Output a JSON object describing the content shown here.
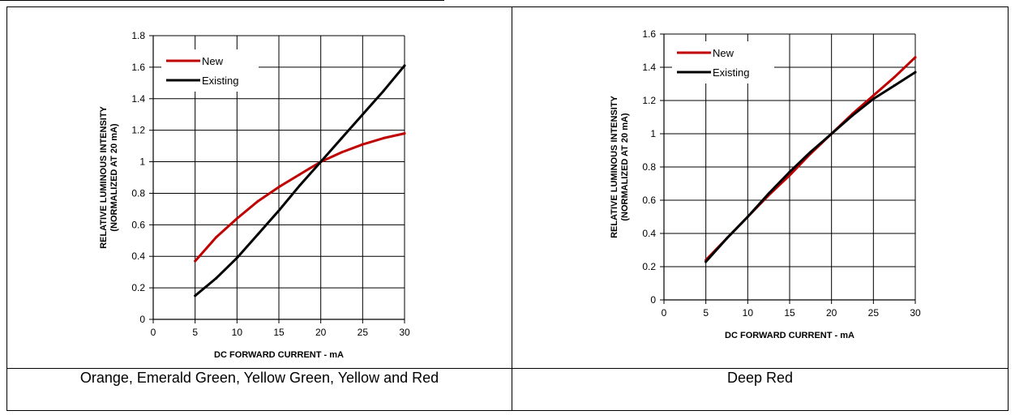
{
  "panels": [
    {
      "caption": "Orange, Emerald Green, Yellow Green, Yellow and Red",
      "chart_data": {
        "type": "line",
        "title": "",
        "xlabel": "DC FORWARD CURRENT - mA",
        "ylabel_line1": "RELATIVE LUMINOUS INTENSITY",
        "ylabel_line2": "(NORMALIZED AT 20 mA)",
        "xlim": [
          0,
          30
        ],
        "ylim": [
          0,
          1.8
        ],
        "xticks": [
          "0",
          "5",
          "10",
          "15",
          "20",
          "25",
          "30"
        ],
        "yticks": [
          "0",
          "0.2",
          "0.4",
          "0.6",
          "0.8",
          "1",
          "1.2",
          "1.4",
          "1.6",
          "1.8"
        ],
        "grid": true,
        "legend_position": "top-left",
        "series": [
          {
            "name": "New",
            "color": "#c00000",
            "x": [
              5,
              7.5,
              10,
              12.5,
              15,
              17.5,
              20,
              22.5,
              25,
              27.5,
              30
            ],
            "y": [
              0.37,
              0.52,
              0.64,
              0.75,
              0.84,
              0.92,
              1.0,
              1.06,
              1.11,
              1.15,
              1.18
            ]
          },
          {
            "name": "Existing",
            "color": "#000000",
            "x": [
              5,
              7.5,
              10,
              12.5,
              15,
              17.5,
              20,
              22.5,
              25,
              27.5,
              30
            ],
            "y": [
              0.15,
              0.26,
              0.39,
              0.54,
              0.69,
              0.85,
              1.0,
              1.15,
              1.3,
              1.45,
              1.61
            ]
          }
        ]
      }
    },
    {
      "caption": "Deep Red",
      "chart_data": {
        "type": "line",
        "title": "",
        "xlabel": "DC FORWARD CURRENT - mA",
        "ylabel_line1": "RELATIVE LUMINOUS INTENSITY",
        "ylabel_line2": "(NORMALIZED AT 20 mA)",
        "xlim": [
          0,
          30
        ],
        "ylim": [
          0,
          1.6
        ],
        "xticks": [
          "0",
          "5",
          "10",
          "15",
          "20",
          "25",
          "30"
        ],
        "yticks": [
          "0",
          "0.2",
          "0.4",
          "0.6",
          "0.8",
          "1",
          "1.2",
          "1.4",
          "1.6"
        ],
        "grid": true,
        "legend_position": "top-left",
        "series": [
          {
            "name": "New",
            "color": "#c00000",
            "x": [
              5,
              7.5,
              10,
              12.5,
              15,
              17.5,
              20,
              22.5,
              25,
              27.5,
              30
            ],
            "y": [
              0.24,
              0.37,
              0.5,
              0.63,
              0.75,
              0.88,
              1.0,
              1.12,
              1.23,
              1.34,
              1.46
            ]
          },
          {
            "name": "Existing",
            "color": "#000000",
            "x": [
              5,
              7.5,
              10,
              12.5,
              15,
              17.5,
              20,
              22.5,
              25,
              27.5,
              30
            ],
            "y": [
              0.23,
              0.37,
              0.5,
              0.64,
              0.77,
              0.89,
              1.0,
              1.11,
              1.21,
              1.29,
              1.37
            ]
          }
        ]
      }
    }
  ]
}
